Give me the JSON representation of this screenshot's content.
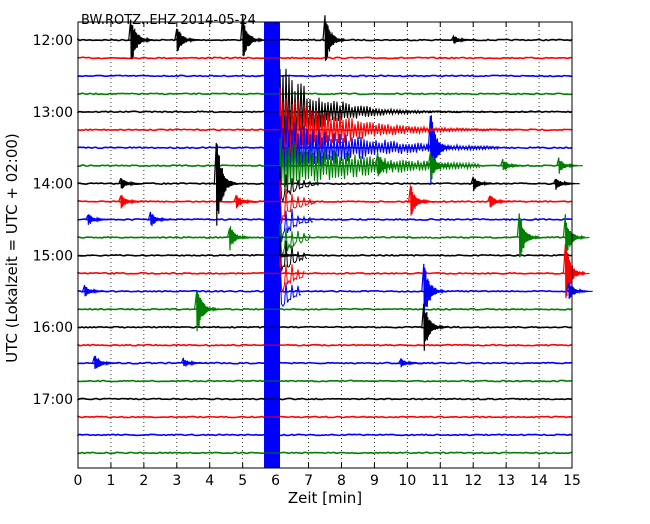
{
  "chart_data": {
    "type": "line",
    "title": "BW.ROTZ..EHZ 2014-05-24",
    "xlabel": "Zeit  [min]",
    "ylabel": "UTC (Lokalzeit = UTC + 02:00)",
    "xlim": [
      0,
      15
    ],
    "x_ticks": [
      "0",
      "1",
      "2",
      "3",
      "4",
      "5",
      "6",
      "7",
      "8",
      "9",
      "10",
      "11",
      "12",
      "13",
      "14",
      "15"
    ],
    "y_ticks": [
      "12:00",
      "13:00",
      "14:00",
      "15:00",
      "16:00",
      "17:00"
    ],
    "grid": true,
    "trace_minutes": 15,
    "traces_per_hour": 4,
    "n_traces": 24,
    "trace_colors": [
      "#000000",
      "#ff0000",
      "#0000ff",
      "#008000"
    ],
    "main_event": {
      "start_minute": 5.8,
      "start_trace": 3,
      "end_trace": 23,
      "color_note": "saturated wide trace across all lines"
    },
    "spikes": [
      {
        "trace": 0,
        "minute": 1.6,
        "amplitude": 1.6
      },
      {
        "trace": 0,
        "minute": 3.0,
        "amplitude": 0.9
      },
      {
        "trace": 0,
        "minute": 5.0,
        "amplitude": 1.4
      },
      {
        "trace": 0,
        "minute": 7.5,
        "amplitude": 1.7
      },
      {
        "trace": 0,
        "minute": 11.4,
        "amplitude": 0.3
      },
      {
        "trace": 6,
        "minute": 10.7,
        "amplitude": 2.4
      },
      {
        "trace": 7,
        "minute": 9.1,
        "amplitude": 0.9
      },
      {
        "trace": 7,
        "minute": 10.7,
        "amplitude": 1.0
      },
      {
        "trace": 7,
        "minute": 12.9,
        "amplitude": 0.4
      },
      {
        "trace": 7,
        "minute": 14.6,
        "amplitude": 0.5
      },
      {
        "trace": 8,
        "minute": 4.2,
        "amplitude": 3.1
      },
      {
        "trace": 8,
        "minute": 1.3,
        "amplitude": 0.4
      },
      {
        "trace": 8,
        "minute": 12.0,
        "amplitude": 0.5
      },
      {
        "trace": 8,
        "minute": 14.5,
        "amplitude": 0.4
      },
      {
        "trace": 9,
        "minute": 1.3,
        "amplitude": 0.5
      },
      {
        "trace": 9,
        "minute": 4.8,
        "amplitude": 0.5
      },
      {
        "trace": 9,
        "minute": 10.1,
        "amplitude": 1.0
      },
      {
        "trace": 9,
        "minute": 12.5,
        "amplitude": 0.5
      },
      {
        "trace": 10,
        "minute": 0.3,
        "amplitude": 0.4
      },
      {
        "trace": 10,
        "minute": 2.2,
        "amplitude": 0.5
      },
      {
        "trace": 11,
        "minute": 4.6,
        "amplitude": 0.8
      },
      {
        "trace": 11,
        "minute": 13.4,
        "amplitude": 1.5
      },
      {
        "trace": 11,
        "minute": 14.8,
        "amplitude": 1.3
      },
      {
        "trace": 12,
        "minute": 5.9,
        "amplitude": 0.9
      },
      {
        "trace": 13,
        "minute": 14.8,
        "amplitude": 1.8
      },
      {
        "trace": 14,
        "minute": 0.2,
        "amplitude": 0.4
      },
      {
        "trace": 14,
        "minute": 10.5,
        "amplitude": 1.9
      },
      {
        "trace": 14,
        "minute": 14.9,
        "amplitude": 0.6
      },
      {
        "trace": 15,
        "minute": 3.6,
        "amplitude": 1.6
      },
      {
        "trace": 16,
        "minute": 10.5,
        "amplitude": 1.6
      },
      {
        "trace": 18,
        "minute": 0.5,
        "amplitude": 0.6
      },
      {
        "trace": 18,
        "minute": 3.2,
        "amplitude": 0.3
      },
      {
        "trace": 18,
        "minute": 9.8,
        "amplitude": 0.3
      }
    ]
  }
}
